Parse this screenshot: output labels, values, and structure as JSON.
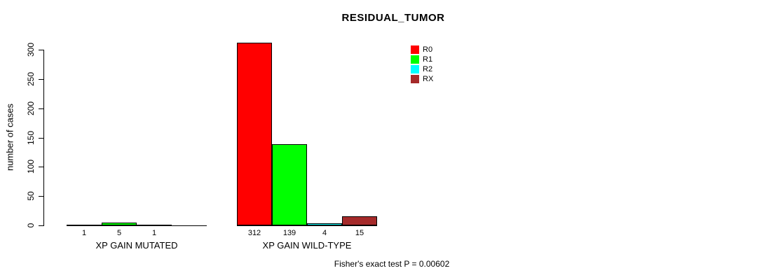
{
  "chart_data": {
    "type": "bar",
    "title": "RESIDUAL_TUMOR",
    "ylabel": "number of cases",
    "xlabel": "",
    "categories": [
      "XP GAIN MUTATED",
      "XP GAIN WILD-TYPE"
    ],
    "series": [
      {
        "name": "R0",
        "color": "#ff0000",
        "values": [
          1,
          312
        ]
      },
      {
        "name": "R1",
        "color": "#00ff00",
        "values": [
          5,
          139
        ]
      },
      {
        "name": "R2",
        "color": "#00ffff",
        "values": [
          1,
          4
        ]
      },
      {
        "name": "RX",
        "color": "#a52a2a",
        "values": [
          0,
          15
        ]
      }
    ],
    "bar_value_labels": [
      [
        "1",
        "5",
        "1",
        ""
      ],
      [
        "312",
        "139",
        "4",
        "15"
      ]
    ],
    "ylim": [
      0,
      300
    ],
    "yticks": [
      0,
      50,
      100,
      150,
      200,
      250,
      300
    ],
    "grid": false,
    "legend_position": "upper-right",
    "annotation": "Fisher's exact test P = 0.00602"
  }
}
